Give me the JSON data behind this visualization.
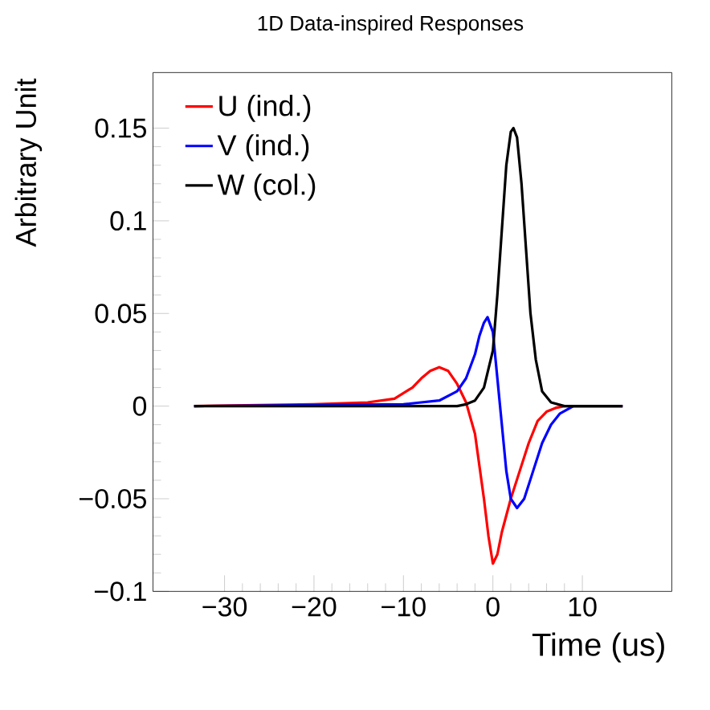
{
  "chart_data": {
    "type": "line",
    "title": "1D Data-inspired Responses",
    "xlabel": "Time (us)",
    "ylabel": "Arbitrary Unit",
    "xlim": [
      -38,
      20
    ],
    "ylim": [
      -0.1,
      0.18
    ],
    "xticks": [
      {
        "value": -30,
        "label": "−30"
      },
      {
        "value": -20,
        "label": "−20"
      },
      {
        "value": -10,
        "label": "−10"
      },
      0,
      10
    ],
    "yticks": [
      {
        "value": -0.1,
        "label": "−0.1"
      },
      {
        "value": -0.05,
        "label": "−0.05"
      },
      0,
      0.05,
      0.1,
      0.15
    ],
    "legend": "top left",
    "grid": false,
    "marker": "none",
    "line_style": "solid",
    "series": [
      {
        "name": "U (ind.)",
        "color": "#ff0000",
        "x": [
          -33.4,
          -20,
          -14,
          -11,
          -9,
          -8,
          -7,
          -6,
          -5,
          -4,
          -3,
          -2,
          -1,
          -0.5,
          0,
          0.5,
          1,
          2,
          3,
          4,
          5,
          6,
          7,
          8,
          14.5
        ],
        "values": [
          0,
          0.001,
          0.002,
          0.004,
          0.01,
          0.015,
          0.019,
          0.021,
          0.019,
          0.012,
          0.002,
          -0.015,
          -0.05,
          -0.07,
          -0.085,
          -0.08,
          -0.068,
          -0.05,
          -0.035,
          -0.02,
          -0.008,
          -0.003,
          -0.001,
          0,
          0
        ]
      },
      {
        "name": "V (ind.)",
        "color": "#0000ff",
        "x": [
          -33.4,
          -10,
          -6,
          -4,
          -3,
          -2,
          -1.5,
          -1,
          -0.6,
          0,
          0.5,
          1,
          1.5,
          2,
          2.7,
          3.5,
          4.5,
          5.5,
          6.5,
          7.5,
          9,
          14.5
        ],
        "values": [
          0,
          0.001,
          0.003,
          0.008,
          0.015,
          0.028,
          0.038,
          0.045,
          0.048,
          0.04,
          0.015,
          -0.01,
          -0.035,
          -0.05,
          -0.055,
          -0.05,
          -0.035,
          -0.02,
          -0.01,
          -0.004,
          0,
          0
        ]
      },
      {
        "name": "W (col.)",
        "color": "#000000",
        "x": [
          -33.4,
          -4,
          -3,
          -2,
          -1,
          0,
          0.5,
          1,
          1.5,
          2,
          2.3,
          2.7,
          3.2,
          3.7,
          4.2,
          4.8,
          5.5,
          6.5,
          8,
          14.5
        ],
        "values": [
          0,
          0,
          0.001,
          0.003,
          0.01,
          0.03,
          0.06,
          0.095,
          0.13,
          0.148,
          0.15,
          0.145,
          0.12,
          0.085,
          0.05,
          0.025,
          0.008,
          0.002,
          0,
          0
        ]
      }
    ]
  }
}
